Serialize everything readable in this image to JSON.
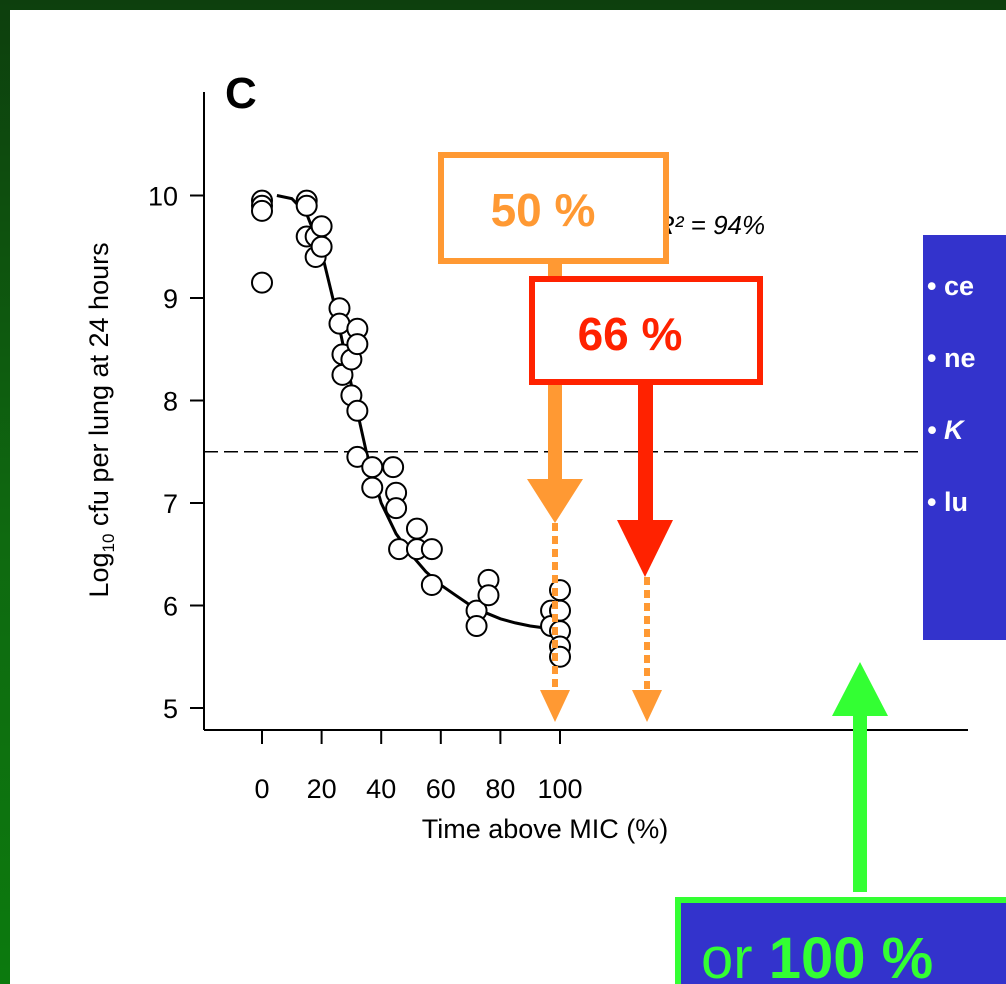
{
  "panel_letter": "C",
  "r_squared_label": "R² = 94%",
  "side_bullets": [
    "• ce",
    "• ne",
    "• K",
    "• lu"
  ],
  "callouts": {
    "pct50": "50 %",
    "pct66": "66 %",
    "or100_prefix": "or",
    "or100_value": "100 %"
  },
  "colors": {
    "orange": "#ff9933",
    "red": "#ff2200",
    "green": "#33ff33",
    "blue_box": "#3333cc",
    "background_green": "#0f6a10"
  },
  "chart_data": {
    "type": "scatter",
    "xlabel": "Time above MIC (%)",
    "ylabel": "Log10 cfu per lung at 24 hours",
    "xticks": [
      0,
      20,
      40,
      60,
      80,
      100
    ],
    "yticks": [
      5,
      6,
      7,
      8,
      9,
      10
    ],
    "xlim": [
      -5,
      108
    ],
    "ylim": [
      4.8,
      10.8
    ],
    "reference_line_y": 7.5,
    "points": [
      [
        0,
        9.95
      ],
      [
        0,
        9.9
      ],
      [
        0,
        9.85
      ],
      [
        0,
        9.15
      ],
      [
        15,
        9.95
      ],
      [
        15,
        9.9
      ],
      [
        15,
        9.6
      ],
      [
        18,
        9.6
      ],
      [
        18,
        9.4
      ],
      [
        20,
        9.7
      ],
      [
        20,
        9.5
      ],
      [
        26,
        8.9
      ],
      [
        26,
        8.75
      ],
      [
        27,
        8.45
      ],
      [
        27,
        8.25
      ],
      [
        30,
        8.4
      ],
      [
        30,
        8.05
      ],
      [
        32,
        8.7
      ],
      [
        32,
        8.55
      ],
      [
        32,
        7.9
      ],
      [
        32,
        7.45
      ],
      [
        37,
        7.35
      ],
      [
        37,
        7.15
      ],
      [
        44,
        7.35
      ],
      [
        45,
        7.1
      ],
      [
        45,
        6.95
      ],
      [
        46,
        6.55
      ],
      [
        52,
        6.75
      ],
      [
        52,
        6.55
      ],
      [
        57,
        6.55
      ],
      [
        57,
        6.2
      ],
      [
        72,
        5.95
      ],
      [
        72,
        5.8
      ],
      [
        76,
        6.25
      ],
      [
        76,
        6.1
      ],
      [
        97,
        5.95
      ],
      [
        97,
        5.8
      ],
      [
        100,
        6.15
      ],
      [
        100,
        5.95
      ],
      [
        100,
        5.75
      ],
      [
        100,
        5.6
      ],
      [
        100,
        5.5
      ]
    ],
    "fit_curve": [
      [
        5,
        10.0
      ],
      [
        10,
        9.97
      ],
      [
        15,
        9.82
      ],
      [
        20,
        9.45
      ],
      [
        25,
        8.85
      ],
      [
        30,
        8.15
      ],
      [
        35,
        7.5
      ],
      [
        40,
        7.0
      ],
      [
        45,
        6.7
      ],
      [
        50,
        6.5
      ],
      [
        55,
        6.33
      ],
      [
        60,
        6.2
      ],
      [
        65,
        6.1
      ],
      [
        70,
        6.0
      ],
      [
        75,
        5.93
      ],
      [
        80,
        5.87
      ],
      [
        85,
        5.83
      ],
      [
        90,
        5.8
      ],
      [
        95,
        5.78
      ],
      [
        100,
        5.76
      ]
    ],
    "annotations": [
      {
        "label": "50 %",
        "x": 50,
        "color": "orange"
      },
      {
        "label": "66 %",
        "x": 65,
        "color": "red"
      },
      {
        "label": "100 %",
        "x": 100,
        "color": "green"
      }
    ]
  }
}
